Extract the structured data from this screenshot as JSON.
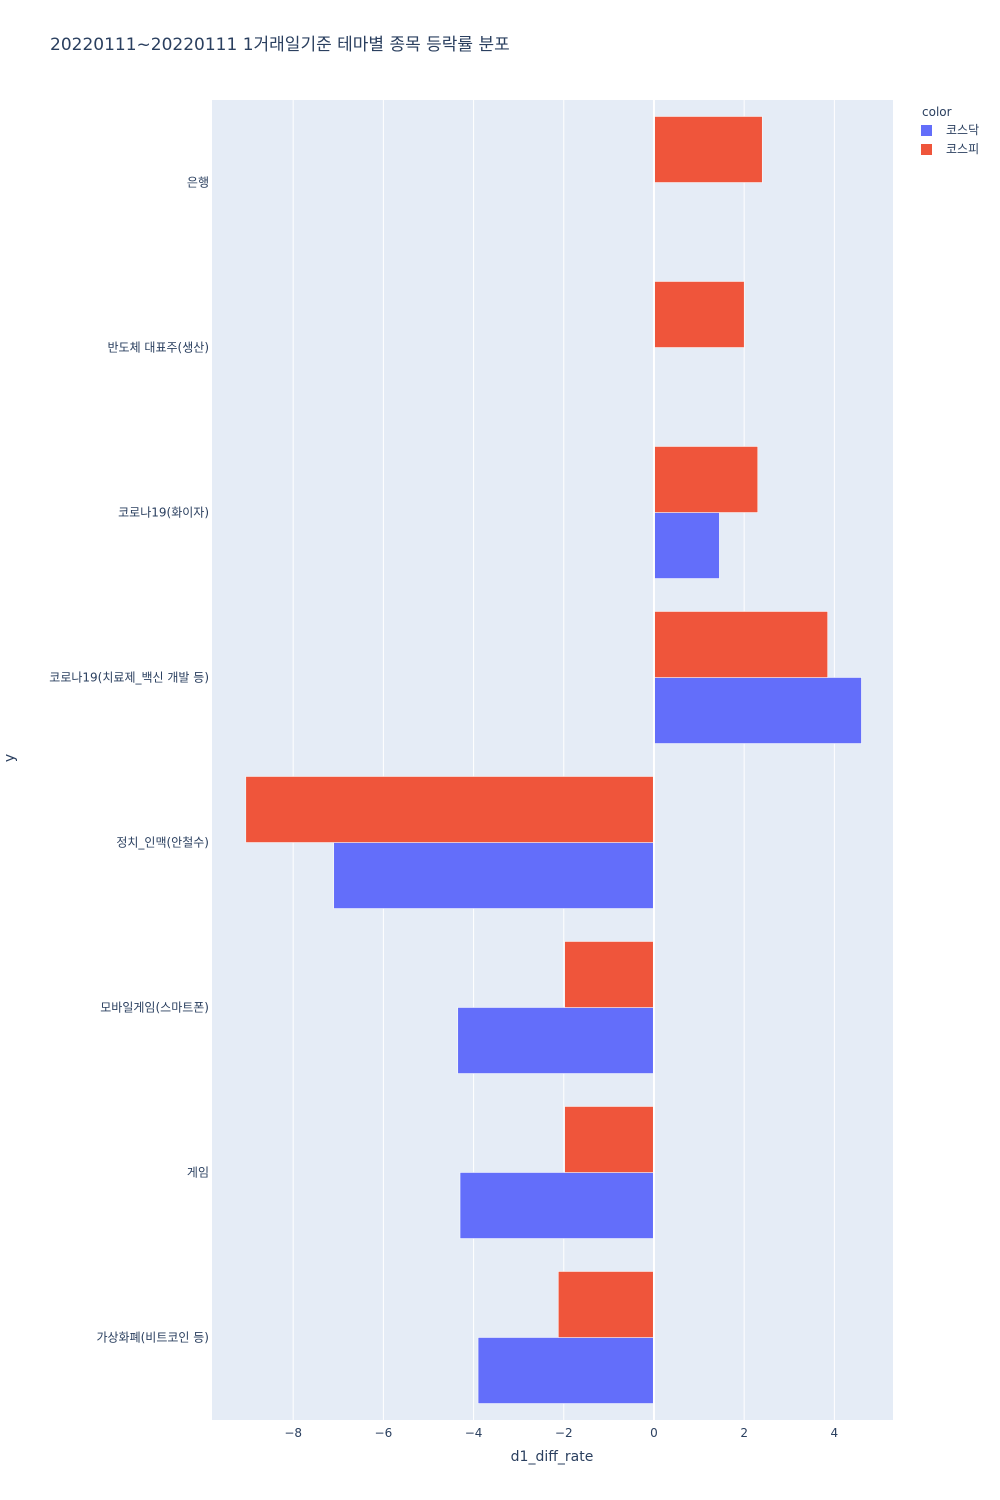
{
  "chart_data": {
    "type": "bar",
    "orientation": "horizontal",
    "title": "20220111~20220111 1거래일기준 테마별 종목 등락률 분포",
    "xlabel": "d1_diff_rate",
    "ylabel": "y",
    "xlim": [
      -9.8,
      5.3
    ],
    "xticks": [
      -8,
      -6,
      -4,
      -2,
      0,
      2,
      4
    ],
    "xtick_labels": [
      "−8",
      "−6",
      "−4",
      "−2",
      "0",
      "2",
      "4"
    ],
    "grid": true,
    "legend_title": "color",
    "legend_position": "top-right",
    "categories": [
      "은행",
      "반도체 대표주(생산)",
      "코로나19(화이자)",
      "코로나19(치료제_백신 개발 등)",
      "정치_인맥(안철수)",
      "모바일게임(스마트폰)",
      "게임",
      "가상화폐(비트코인 등)"
    ],
    "series": [
      {
        "name": "코스닥",
        "color": "#636efa",
        "values": [
          null,
          null,
          1.45,
          4.6,
          -7.1,
          -4.35,
          -4.3,
          -3.9
        ]
      },
      {
        "name": "코스피",
        "color": "#ef553b",
        "values": [
          2.4,
          2.0,
          2.3,
          3.85,
          -9.05,
          -1.98,
          -1.98,
          -2.12
        ]
      }
    ]
  }
}
